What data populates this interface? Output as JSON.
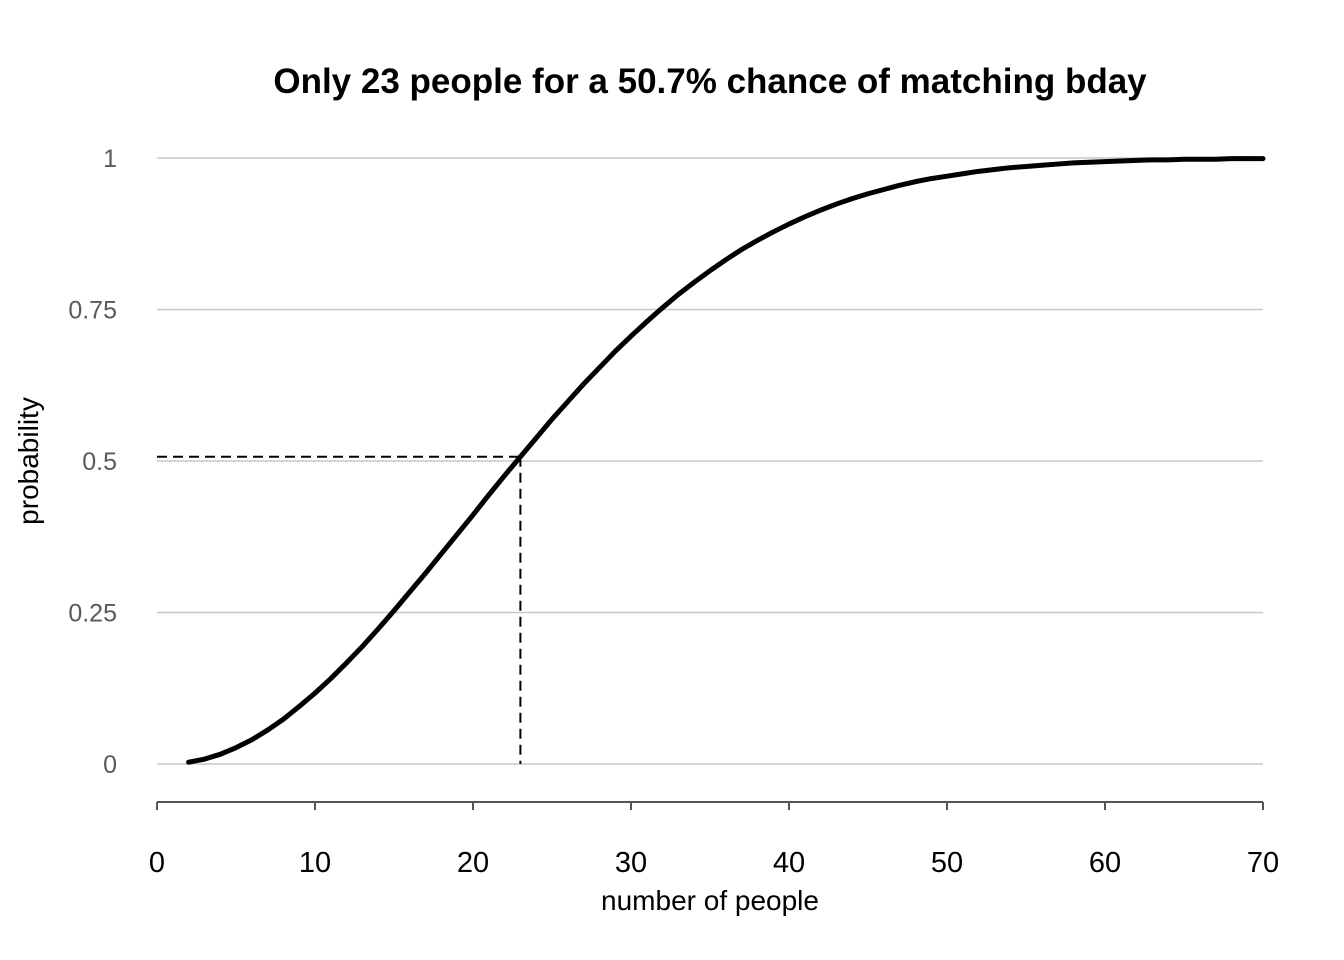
{
  "chart_data": {
    "type": "line",
    "title": "Only 23 people for a 50.7% chance of matching bday",
    "xlabel": "number of people",
    "ylabel": "probability",
    "xlim": [
      0,
      70
    ],
    "ylim": [
      0,
      1
    ],
    "x_ticks": [
      0,
      10,
      20,
      30,
      40,
      50,
      60,
      70
    ],
    "y_ticks": [
      {
        "value": 0,
        "label": "0"
      },
      {
        "value": 0.25,
        "label": "0.25"
      },
      {
        "value": 0.5,
        "label": "0.5"
      },
      {
        "value": 0.75,
        "label": "0.75"
      },
      {
        "value": 1,
        "label": "1"
      }
    ],
    "grid": "horizontal",
    "legend": "none",
    "series": [
      {
        "color": "#000000",
        "x": [
          2,
          3,
          4,
          5,
          6,
          7,
          8,
          9,
          10,
          11,
          12,
          13,
          14,
          15,
          16,
          17,
          18,
          19,
          20,
          21,
          22,
          23,
          24,
          25,
          26,
          27,
          28,
          29,
          30,
          31,
          32,
          33,
          34,
          35,
          36,
          37,
          38,
          39,
          40,
          41,
          42,
          43,
          44,
          45,
          46,
          47,
          48,
          49,
          50,
          51,
          52,
          53,
          54,
          55,
          56,
          57,
          58,
          59,
          60,
          61,
          62,
          63,
          64,
          65,
          66,
          67,
          68,
          69,
          70
        ],
        "y": [
          0.003,
          0.008,
          0.016,
          0.027,
          0.04,
          0.056,
          0.074,
          0.095,
          0.117,
          0.141,
          0.167,
          0.194,
          0.223,
          0.253,
          0.284,
          0.315,
          0.347,
          0.379,
          0.411,
          0.444,
          0.476,
          0.507,
          0.538,
          0.569,
          0.598,
          0.627,
          0.654,
          0.681,
          0.706,
          0.73,
          0.753,
          0.775,
          0.795,
          0.814,
          0.832,
          0.849,
          0.864,
          0.878,
          0.891,
          0.903,
          0.914,
          0.924,
          0.933,
          0.941,
          0.948,
          0.955,
          0.961,
          0.966,
          0.97,
          0.974,
          0.978,
          0.981,
          0.984,
          0.986,
          0.988,
          0.99,
          0.992,
          0.993,
          0.994,
          0.995,
          0.996,
          0.997,
          0.997,
          0.998,
          0.998,
          0.998,
          0.999,
          0.999,
          0.999
        ]
      }
    ],
    "reference_point": {
      "x": 23,
      "y": 0.507,
      "style": "dashed",
      "color": "#000000"
    },
    "colors": {
      "grid": "#c8c8c8",
      "axis": "#555555",
      "line": "#000000",
      "ytick_text": "#5a5a5a"
    }
  }
}
